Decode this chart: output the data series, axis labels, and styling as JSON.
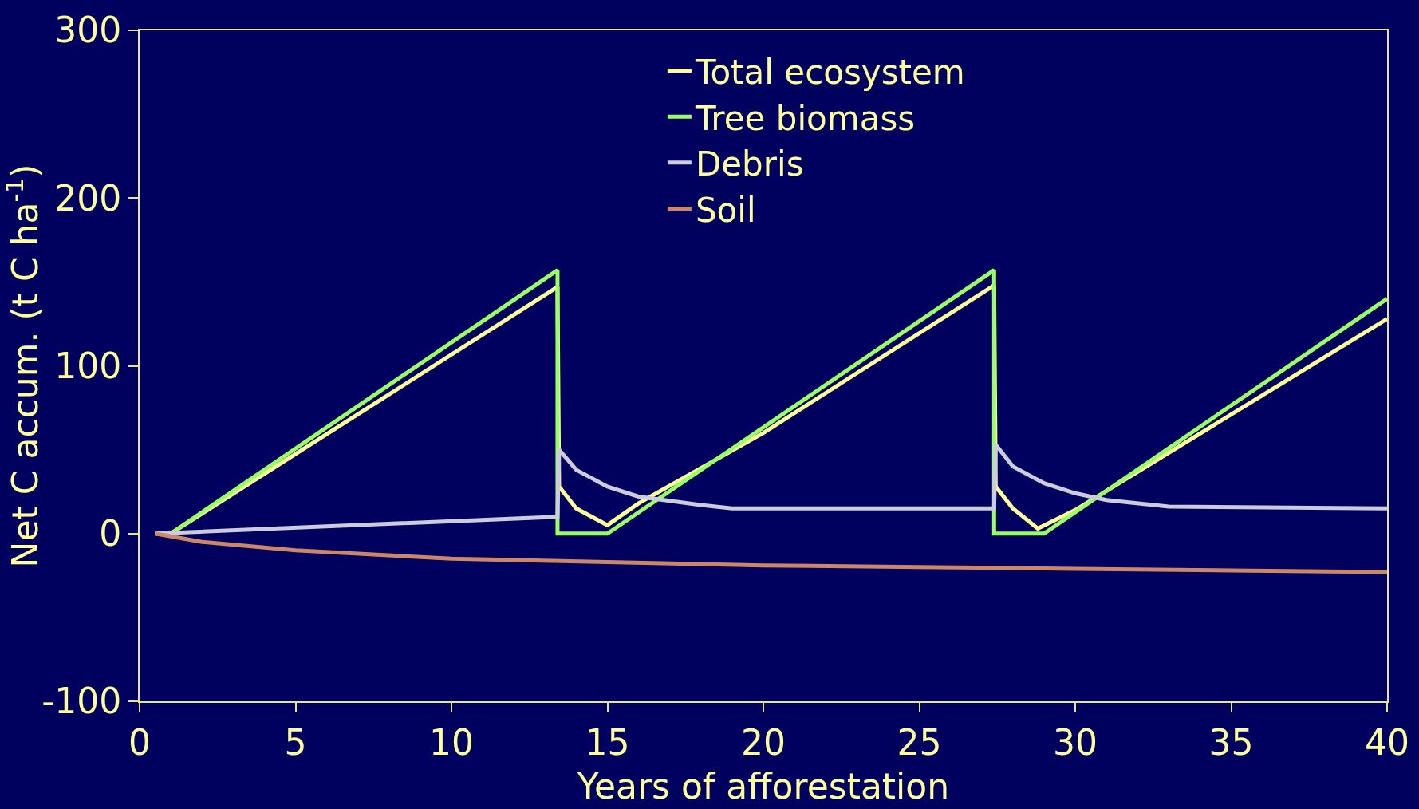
{
  "chart_data": {
    "type": "line",
    "xlabel": "Years of afforestation",
    "ylabel": "Net C accum. (t C ha$^{-1}$)",
    "xlim": [
      0,
      40
    ],
    "xticks": [
      0,
      5,
      10,
      15,
      20,
      25,
      30,
      35,
      40
    ],
    "ylim": [
      -100,
      300
    ],
    "yticks": [
      -100,
      0,
      100,
      200,
      300
    ],
    "grid": false,
    "legend": "top",
    "marker": "none",
    "line_style": "solid",
    "series": [
      {
        "name": "Total ecosystem",
        "color": "#ffff99",
        "x": [
          0.5,
          1,
          13.4,
          13.45,
          14,
          15,
          16,
          20,
          27.4,
          27.45,
          28,
          28.8,
          30,
          40
        ],
        "values": [
          0,
          0,
          147,
          28,
          15,
          5,
          18,
          60,
          148,
          28,
          15,
          3,
          14,
          128
        ]
      },
      {
        "name": "Tree biomass",
        "color": "#99ff66",
        "x": [
          0.5,
          1,
          13.4,
          13.4,
          15,
          27.4,
          27.4,
          29,
          40
        ],
        "values": [
          0,
          0,
          157,
          0,
          0,
          157,
          0,
          0,
          140
        ]
      },
      {
        "name": "Debris",
        "color": "#ccccdd",
        "x": [
          0.5,
          13.4,
          13.45,
          14,
          15,
          16,
          18,
          19,
          27.4,
          27.45,
          28,
          29,
          30,
          31,
          33,
          40
        ],
        "values": [
          0,
          10,
          50,
          38,
          28,
          22,
          17,
          15,
          15,
          53,
          40,
          30,
          24,
          20,
          16,
          15
        ]
      },
      {
        "name": "Soil",
        "color": "#cc8866",
        "x": [
          0.5,
          2,
          5,
          10,
          15,
          20,
          25,
          30,
          35,
          40
        ],
        "values": [
          0,
          -5,
          -10,
          -15,
          -17,
          -19,
          -20,
          -21,
          -22,
          -23
        ]
      }
    ]
  }
}
